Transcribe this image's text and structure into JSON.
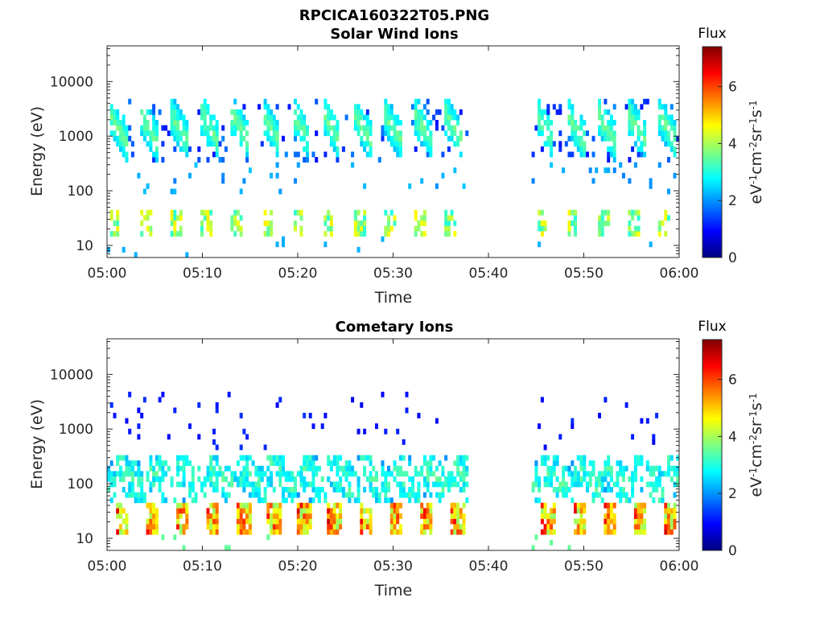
{
  "figure": {
    "filename_title": "RPCICA160322T05.PNG"
  },
  "chart_data": [
    {
      "type": "heatmap",
      "title": "Solar Wind Ions",
      "xlabel": "Time",
      "ylabel": "Energy (eV)",
      "x_range": [
        "05:00",
        "06:00"
      ],
      "xticks": [
        "05:00",
        "05:10",
        "05:20",
        "05:30",
        "05:40",
        "05:50",
        "06:00"
      ],
      "yscale": "log",
      "ylim": [
        6,
        45000
      ],
      "yticks": [
        10,
        100,
        1000,
        10000
      ],
      "ytick_labels": [
        "10",
        "100",
        "1000",
        "10000"
      ],
      "colorbar": {
        "title": "Flux",
        "label": "eV-1cm-2sr-1s-1",
        "range": [
          0,
          7.4
        ],
        "ticks": [
          0,
          2,
          4,
          6
        ],
        "colormap": "jet"
      },
      "data_gap": [
        "05:38",
        "05:44.5"
      ],
      "features": [
        {
          "component": "high energy dispersed streaks",
          "energy_range_eV": [
            300,
            5000
          ],
          "peak_flux": 3.5,
          "period_min": 3.2,
          "start_min": 0.3
        },
        {
          "component": "mid energy speckle",
          "energy_range_eV": [
            80,
            300
          ],
          "peak_flux": 2.4
        },
        {
          "component": "low energy bursts",
          "energy_range_eV": [
            15,
            40
          ],
          "peak_flux": 4.8
        }
      ],
      "grid": false
    },
    {
      "type": "heatmap",
      "title": "Cometary Ions",
      "xlabel": "Time",
      "ylabel": "Energy (eV)",
      "x_range": [
        "05:00",
        "06:00"
      ],
      "xticks": [
        "05:00",
        "05:10",
        "05:20",
        "05:30",
        "05:40",
        "05:50",
        "06:00"
      ],
      "yscale": "log",
      "ylim": [
        6,
        45000
      ],
      "yticks": [
        10,
        100,
        1000,
        10000
      ],
      "ytick_labels": [
        "10",
        "100",
        "1000",
        "10000"
      ],
      "colorbar": {
        "title": "Flux",
        "label": "eV-1cm-2sr-1s-1",
        "range": [
          0,
          7.4
        ],
        "ticks": [
          0,
          2,
          4,
          6
        ],
        "colormap": "jet"
      },
      "data_gap": [
        "05:38",
        "05:44.5"
      ],
      "features": [
        {
          "component": "intense low energy bursts",
          "energy_range_eV": [
            12,
            45
          ],
          "peak_flux": 7.0,
          "period_min": 3.2,
          "start_min": 0.8
        },
        {
          "component": "dispersed mid energy band",
          "energy_range_eV": [
            40,
            300
          ],
          "peak_flux": 3.5
        },
        {
          "component": "sparse high energy points",
          "energy_range_eV": [
            400,
            5000
          ],
          "peak_flux": 1.0
        }
      ],
      "grid": false
    }
  ]
}
